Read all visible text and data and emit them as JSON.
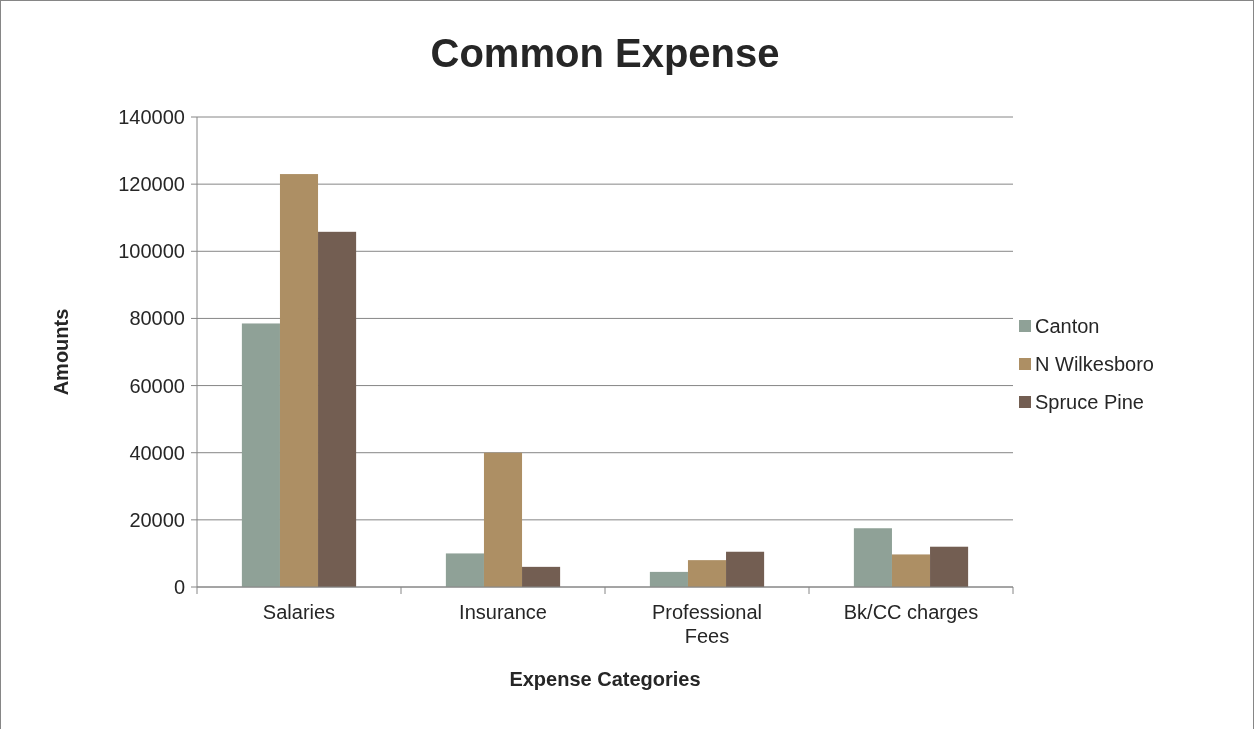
{
  "chart_data": {
    "type": "bar",
    "title": "Common Expense",
    "xlabel": "Expense Categories",
    "ylabel": "Amounts",
    "categories": [
      "Salaries",
      "Insurance",
      "Professional Fees",
      "Bk/CC charges"
    ],
    "series": [
      {
        "name": "Canton",
        "color": "#8fa197",
        "values": [
          78500,
          10000,
          4500,
          17500
        ]
      },
      {
        "name": "N Wilkesboro",
        "color": "#ad8f64",
        "values": [
          123000,
          40000,
          8000,
          9700
        ]
      },
      {
        "name": "Spruce Pine",
        "color": "#735e52",
        "values": [
          105800,
          6000,
          10500,
          12000
        ]
      }
    ],
    "ylim": [
      0,
      140000
    ],
    "yticks": [
      0,
      20000,
      40000,
      60000,
      80000,
      100000,
      120000,
      140000
    ],
    "grid": "y",
    "legend": "right"
  }
}
